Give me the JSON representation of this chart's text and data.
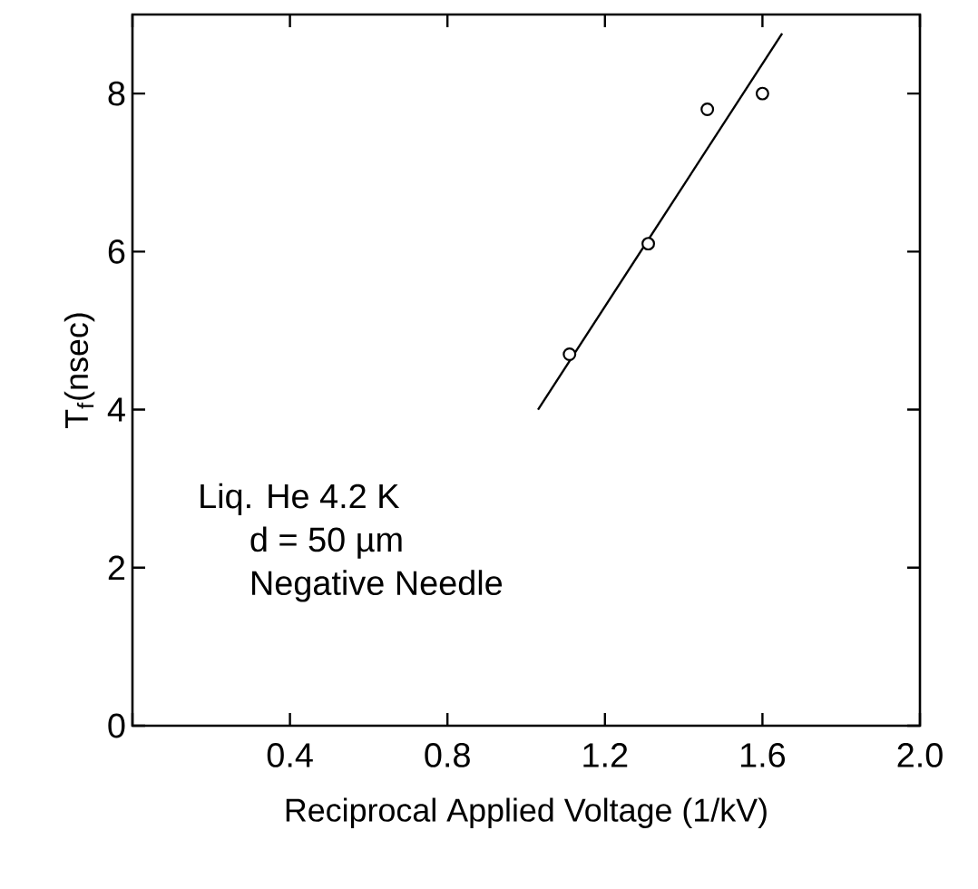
{
  "chart_data": {
    "type": "scatter",
    "xlabel": "Reciprocal Applied Voltage (1/kV)",
    "ylabel": "T$_{f}$(nsec)",
    "xlim": [
      0,
      2
    ],
    "ylim": [
      0,
      9
    ],
    "xticks": [
      {
        "value": 0,
        "label": null
      },
      0.4,
      0.8,
      1.2,
      1.6,
      {
        "value": 2,
        "label": "2.0"
      }
    ],
    "yticks": [
      0,
      2,
      4,
      6,
      8
    ],
    "series": [
      {
        "color": "#000000",
        "marker": "circle",
        "x": [
          1.11,
          1.31,
          1.46,
          1.6
        ],
        "values": [
          4.7,
          6.1,
          7.8,
          8.0
        ]
      },
      {
        "type": "line",
        "color": "#000000",
        "line_style": "solid",
        "marker": "none",
        "x": [
          1.03,
          1.65
        ],
        "values": [
          4.0,
          8.76
        ]
      }
    ],
    "annotations": [
      "Liq. He   4.2 K",
      "d = 50 µm",
      "Negative Needle"
    ],
    "grid": false
  }
}
